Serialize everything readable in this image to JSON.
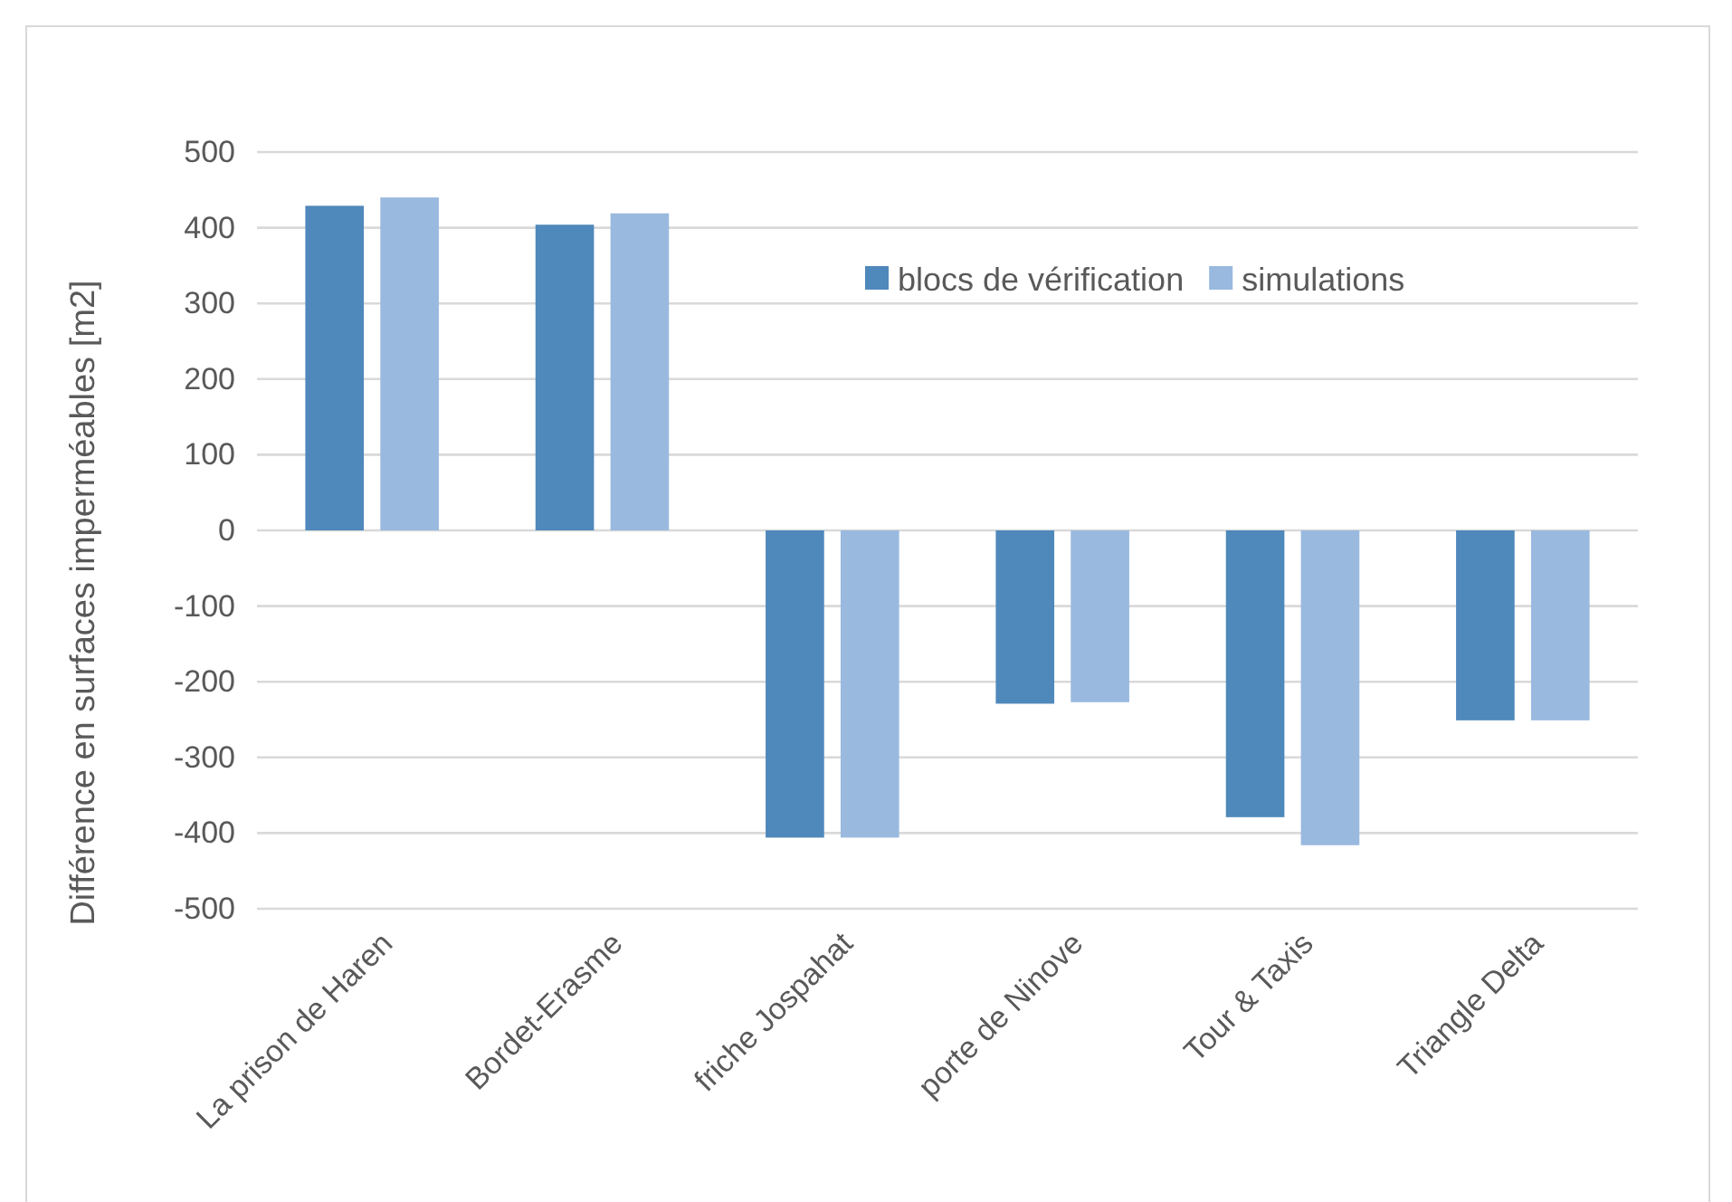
{
  "chart_data": {
    "type": "bar",
    "ylabel": "Différence en surfaces imperméables [m2]",
    "categories": [
      "La prison de Haren",
      "Bordet-Erasme",
      "friche Jospahat",
      "porte de Ninove",
      "Tour & Taxis",
      "Triangle Delta"
    ],
    "series": [
      {
        "name": "blocs de vérification",
        "color": "#4f88bb",
        "values": [
          429,
          404,
          -406,
          -229,
          -379,
          -251
        ]
      },
      {
        "name": "simulations",
        "color": "#99b9df",
        "values": [
          440,
          419,
          -406,
          -227,
          -416,
          -251
        ]
      }
    ],
    "ylim": [
      -500,
      500
    ],
    "yticks": [
      -500,
      -400,
      -300,
      -200,
      -100,
      0,
      100,
      200,
      300,
      400,
      500
    ],
    "grid": "y",
    "legend": "top right"
  }
}
